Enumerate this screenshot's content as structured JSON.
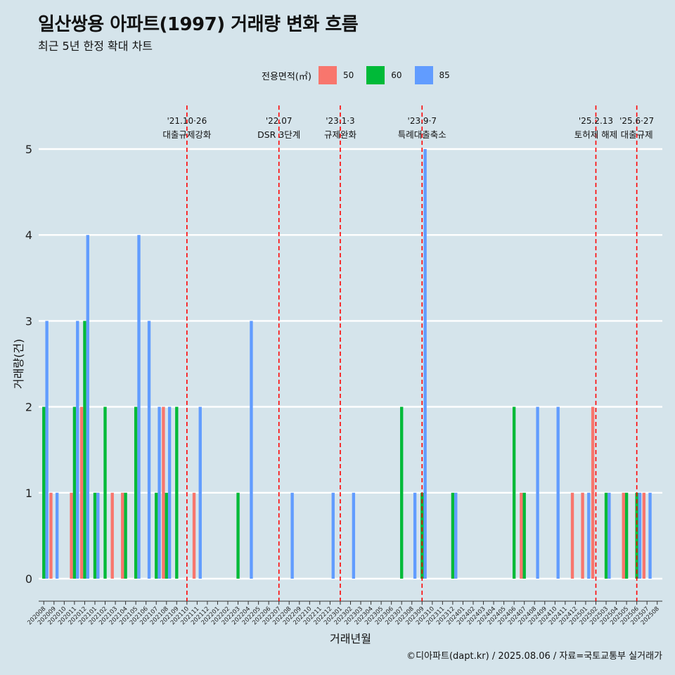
{
  "header": {
    "title": "일산쌍용 아파트(1997) 거래량 변화 흐름",
    "subtitle": "최근 5년 한정 확대 차트"
  },
  "legend": {
    "title": "전용면적(㎡)",
    "items": [
      {
        "label": "50",
        "color": "#f8766d"
      },
      {
        "label": "60",
        "color": "#00ba38"
      },
      {
        "label": "85",
        "color": "#619cff"
      }
    ]
  },
  "caption": "©디아파트(dapt.kr) / 2025.08.06 / 자료=국토교통부 실거래가",
  "chart_data": {
    "type": "bar",
    "xlabel": "거래년월",
    "ylabel": "거래량(건)",
    "ylim": [
      0,
      5
    ],
    "yticks": [
      0,
      1,
      2,
      3,
      4,
      5
    ],
    "grid": true,
    "legend_position": "top",
    "categories": [
      "202008",
      "202009",
      "202010",
      "202011",
      "202012",
      "202101",
      "202102",
      "202103",
      "202104",
      "202105",
      "202106",
      "202107",
      "202108",
      "202109",
      "202110",
      "202111",
      "202112",
      "202201",
      "202202",
      "202203",
      "202204",
      "202205",
      "202206",
      "202207",
      "202208",
      "202209",
      "202210",
      "202211",
      "202212",
      "202301",
      "202302",
      "202303",
      "202304",
      "202305",
      "202306",
      "202307",
      "202308",
      "202309",
      "202310",
      "202311",
      "202312",
      "202401",
      "202402",
      "202403",
      "202404",
      "202405",
      "202406",
      "202407",
      "202408",
      "202409",
      "202410",
      "202411",
      "202412",
      "202501",
      "202502",
      "202503",
      "202504",
      "202505",
      "202506",
      "202507",
      "202508"
    ],
    "series": [
      {
        "name": "50",
        "color": "#f8766d",
        "values": [
          0,
          1,
          0,
          1,
          2,
          0,
          0,
          1,
          1,
          0,
          0,
          0,
          2,
          0,
          0,
          1,
          0,
          0,
          0,
          0,
          0,
          0,
          0,
          0,
          0,
          0,
          0,
          0,
          0,
          0,
          0,
          0,
          0,
          0,
          0,
          0,
          0,
          0,
          0,
          0,
          0,
          0,
          0,
          0,
          0,
          0,
          0,
          1,
          0,
          0,
          0,
          0,
          1,
          1,
          2,
          0,
          0,
          1,
          0,
          1,
          0
        ]
      },
      {
        "name": "60",
        "color": "#00ba38",
        "values": [
          2,
          0,
          0,
          2,
          3,
          1,
          2,
          0,
          1,
          2,
          0,
          1,
          1,
          2,
          0,
          0,
          0,
          0,
          0,
          1,
          0,
          0,
          0,
          0,
          0,
          0,
          0,
          0,
          0,
          0,
          0,
          0,
          0,
          0,
          0,
          2,
          0,
          1,
          0,
          0,
          1,
          0,
          0,
          0,
          0,
          0,
          2,
          1,
          0,
          0,
          0,
          0,
          0,
          0,
          0,
          1,
          0,
          1,
          1,
          0,
          0
        ]
      },
      {
        "name": "85",
        "color": "#619cff",
        "values": [
          3,
          1,
          0,
          3,
          4,
          1,
          0,
          0,
          0,
          4,
          3,
          2,
          2,
          0,
          0,
          2,
          0,
          0,
          0,
          0,
          3,
          0,
          0,
          0,
          1,
          0,
          0,
          0,
          1,
          0,
          1,
          0,
          0,
          0,
          0,
          0,
          1,
          5,
          0,
          0,
          1,
          0,
          0,
          0,
          0,
          0,
          0,
          0,
          2,
          0,
          2,
          0,
          0,
          1,
          0,
          1,
          0,
          0,
          1,
          1,
          0
        ]
      }
    ],
    "events": [
      {
        "at": "202110",
        "date": "'21.10·26",
        "label": "대출규제강화"
      },
      {
        "at": "202207",
        "date": "'22.07",
        "label": "DSR 3단계"
      },
      {
        "at": "202301",
        "date": "'23.1·3",
        "label": "규제완화"
      },
      {
        "at": "202309",
        "date": "'23.9·7",
        "label": "특례대출축소"
      },
      {
        "at": "202502",
        "date": "'25.2.13",
        "label": "토허제 해제"
      },
      {
        "at": "202506",
        "date": "'25.6·27",
        "label": "대출규제"
      }
    ]
  }
}
